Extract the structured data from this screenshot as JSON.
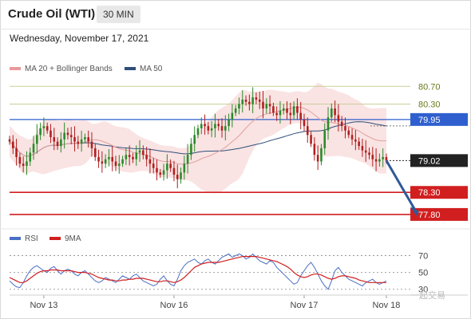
{
  "header": {
    "title": "Crude Oil (WTI)",
    "timeframe": "30 MIN"
  },
  "date_label": "Wednesday, November 17, 2021",
  "legend_main": [
    {
      "label": "MA 20 + Bollinger Bands",
      "color": "#e89a9a"
    },
    {
      "label": "MA 50",
      "color": "#2f4f7a"
    }
  ],
  "legend_rsi": [
    {
      "label": "RSI",
      "color": "#4a6fc4"
    },
    {
      "label": "9MA",
      "color": "#d11f1f"
    }
  ],
  "watermark": "一起交易",
  "chart_data": [
    {
      "type": "candlestick",
      "ylim": [
        77.6,
        80.85
      ],
      "x_ticks": [
        {
          "label": "Nov 13",
          "x": 10
        },
        {
          "label": "Nov 16",
          "x": 48
        },
        {
          "label": "Nov 17",
          "x": 86
        },
        {
          "label": "Nov 18",
          "x": 110
        }
      ],
      "x_range": [
        0,
        117
      ],
      "levels": [
        {
          "value": 80.7,
          "label": "80.70",
          "kind": "target",
          "color": "#c8cf9a"
        },
        {
          "value": 80.3,
          "label": "80.30",
          "kind": "target",
          "color": "#c8cf9a"
        },
        {
          "value": 79.95,
          "label": "79.95",
          "kind": "resistance",
          "color": "#2f5fce"
        },
        {
          "value": 79.02,
          "label": "79.02",
          "kind": "current",
          "color": "#222222"
        },
        {
          "value": 78.3,
          "label": "78.30",
          "kind": "support",
          "color": "#d11f1f"
        },
        {
          "value": 77.8,
          "label": "77.80",
          "kind": "support",
          "color": "#d11f1f"
        }
      ],
      "closes": [
        79.45,
        79.3,
        79.1,
        78.95,
        78.9,
        79.0,
        79.2,
        79.4,
        79.6,
        79.75,
        79.8,
        79.7,
        79.55,
        79.45,
        79.35,
        79.5,
        79.65,
        79.6,
        79.55,
        79.45,
        79.4,
        79.5,
        79.55,
        79.45,
        79.3,
        79.1,
        79.0,
        78.95,
        79.05,
        79.1,
        79.0,
        78.9,
        78.95,
        79.05,
        79.15,
        79.1,
        79.05,
        79.2,
        79.25,
        79.15,
        79.05,
        78.95,
        78.85,
        78.75,
        78.7,
        78.8,
        78.95,
        78.85,
        78.7,
        78.6,
        78.75,
        78.95,
        79.15,
        79.4,
        79.6,
        79.75,
        79.85,
        79.8,
        79.7,
        79.75,
        79.85,
        79.8,
        79.7,
        79.8,
        79.95,
        80.1,
        80.2,
        80.3,
        80.4,
        80.35,
        80.3,
        80.45,
        80.4,
        80.35,
        80.2,
        80.3,
        80.25,
        80.1,
        80.05,
        80.15,
        80.2,
        80.1,
        80.05,
        80.25,
        80.1,
        79.95,
        79.8,
        79.6,
        79.4,
        79.15,
        79.0,
        79.3,
        79.7,
        80.0,
        80.2,
        80.05,
        79.9,
        79.8,
        79.7,
        79.6,
        79.5,
        79.45,
        79.35,
        79.25,
        79.2,
        79.15,
        79.05,
        79.0,
        79.05,
        79.1,
        79.02
      ],
      "projection": {
        "from_x": 110,
        "from": 79.02,
        "to_x": 116,
        "to": 77.8
      }
    },
    {
      "type": "line",
      "title": "RSI",
      "ylim": [
        25,
        80
      ],
      "y_ticks": [
        70,
        50,
        30
      ],
      "series": [
        {
          "name": "RSI",
          "values": [
            40,
            36,
            33,
            32,
            38,
            46,
            52,
            56,
            58,
            55,
            52,
            50,
            55,
            57,
            52,
            48,
            52,
            54,
            52,
            48,
            46,
            50,
            52,
            48,
            44,
            40,
            38,
            40,
            44,
            42,
            40,
            38,
            42,
            46,
            44,
            42,
            46,
            48,
            44,
            40,
            38,
            36,
            34,
            36,
            42,
            46,
            40,
            36,
            34,
            42,
            52,
            58,
            62,
            64,
            66,
            62,
            60,
            64,
            66,
            62,
            60,
            64,
            68,
            70,
            72,
            68,
            70,
            72,
            70,
            66,
            68,
            72,
            68,
            64,
            62,
            60,
            64,
            62,
            56,
            52,
            48,
            44,
            40,
            36,
            38,
            46,
            52,
            58,
            62,
            56,
            48,
            40,
            34,
            30,
            40,
            52,
            56,
            50,
            46,
            42,
            40,
            38,
            36,
            34,
            38,
            40,
            42,
            38,
            36,
            38,
            40
          ]
        },
        {
          "name": "9MA",
          "values": [
            44,
            42,
            40,
            38,
            38,
            40,
            43,
            46,
            49,
            51,
            52,
            52,
            53,
            53,
            53,
            52,
            52,
            52,
            52,
            51,
            50,
            50,
            50,
            49,
            48,
            46,
            44,
            43,
            42,
            41,
            41,
            40,
            40,
            41,
            41,
            42,
            42,
            43,
            43,
            43,
            42,
            41,
            40,
            39,
            39,
            40,
            40,
            39,
            38,
            39,
            41,
            44,
            48,
            52,
            56,
            58,
            60,
            61,
            62,
            62,
            62,
            62,
            63,
            64,
            65,
            66,
            67,
            68,
            69,
            69,
            69,
            69,
            69,
            68,
            67,
            66,
            65,
            64,
            63,
            61,
            59,
            57,
            54,
            50,
            47,
            45,
            44,
            45,
            47,
            48,
            48,
            47,
            45,
            43,
            42,
            43,
            45,
            46,
            46,
            45,
            44,
            43,
            41,
            40,
            39,
            38,
            38,
            38,
            38,
            38,
            38
          ]
        }
      ]
    }
  ]
}
